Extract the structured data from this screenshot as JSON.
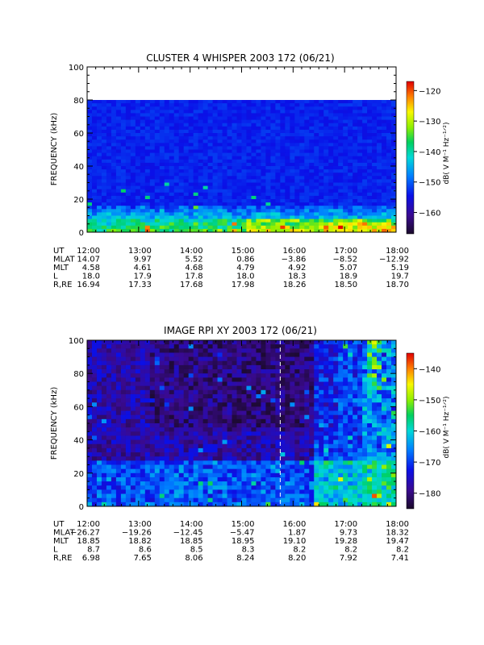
{
  "chart_data": [
    {
      "type": "heatmap",
      "title": "CLUSTER 4 WHISPER 2003 172 (06/21)",
      "ylabel": "FREQUENCY (kHz)",
      "ylim": [
        0,
        100
      ],
      "yticks": [
        "0",
        "20",
        "40",
        "60",
        "80",
        "100"
      ],
      "data_ceiling_khz": 80,
      "xticks": [
        "12:00",
        "13:00",
        "14:00",
        "15:00",
        "16:00",
        "17:00",
        "18:00"
      ],
      "colorbar": {
        "label": "dB( V M⁻¹ Hz⁻¹ᐟ²)",
        "range": [
          -167,
          -117
        ],
        "ticks": [
          "-120",
          "-130",
          "-140",
          "-150",
          "-160"
        ]
      },
      "ephemeris": [
        {
          "label": "UT",
          "values": [
            "12:00",
            "13:00",
            "14:00",
            "15:00",
            "16:00",
            "17:00",
            "18:00"
          ]
        },
        {
          "label": "MLAT",
          "values": [
            "14.07",
            "9.97",
            "5.52",
            "0.86",
            "−3.86",
            "−8.52",
            "−12.92"
          ]
        },
        {
          "label": "MLT",
          "values": [
            "4.58",
            "4.61",
            "4.68",
            "4.79",
            "4.92",
            "5.07",
            "5.19"
          ]
        },
        {
          "label": "L",
          "values": [
            "18.0",
            "17.9",
            "17.8",
            "18.0",
            "18.3",
            "18.9",
            "19.7"
          ]
        },
        {
          "label": "R,RE",
          "values": [
            "16.94",
            "17.33",
            "17.68",
            "17.98",
            "18.26",
            "18.50",
            "18.70"
          ]
        }
      ]
    },
    {
      "type": "heatmap",
      "title": "IMAGE RPI XY 2003 172 (06/21)",
      "ylabel": "FREQUENCY (kHz)",
      "ylim": [
        0,
        100
      ],
      "yticks": [
        "0",
        "20",
        "40",
        "60",
        "80",
        "100"
      ],
      "xticks": [
        "12:00",
        "13:00",
        "14:00",
        "15:00",
        "16:00",
        "17:00",
        "18:00"
      ],
      "dashed_marker_ut": "15:45",
      "colorbar": {
        "label": "dB( V M⁻¹ Hz⁻¹ᐟ²)",
        "range": [
          -185,
          -135
        ],
        "ticks": [
          "-140",
          "-150",
          "-160",
          "-170",
          "-180"
        ]
      },
      "ephemeris": [
        {
          "label": "UT",
          "values": [
            "12:00",
            "13:00",
            "14:00",
            "15:00",
            "16:00",
            "17:00",
            "18:00"
          ]
        },
        {
          "label": "MLAT",
          "values": [
            "−26.27",
            "−19.26",
            "−12.45",
            "−5.47",
            "1.87",
            "9.73",
            "18.32"
          ]
        },
        {
          "label": "MLT",
          "values": [
            "18.85",
            "18.82",
            "18.85",
            "18.95",
            "19.10",
            "19.28",
            "19.47"
          ]
        },
        {
          "label": "L",
          "values": [
            "8.7",
            "8.6",
            "8.5",
            "8.3",
            "8.2",
            "8.2",
            "8.2"
          ]
        },
        {
          "label": "R,RE",
          "values": [
            "6.98",
            "7.65",
            "8.06",
            "8.24",
            "8.20",
            "7.92",
            "7.41"
          ]
        }
      ]
    }
  ]
}
